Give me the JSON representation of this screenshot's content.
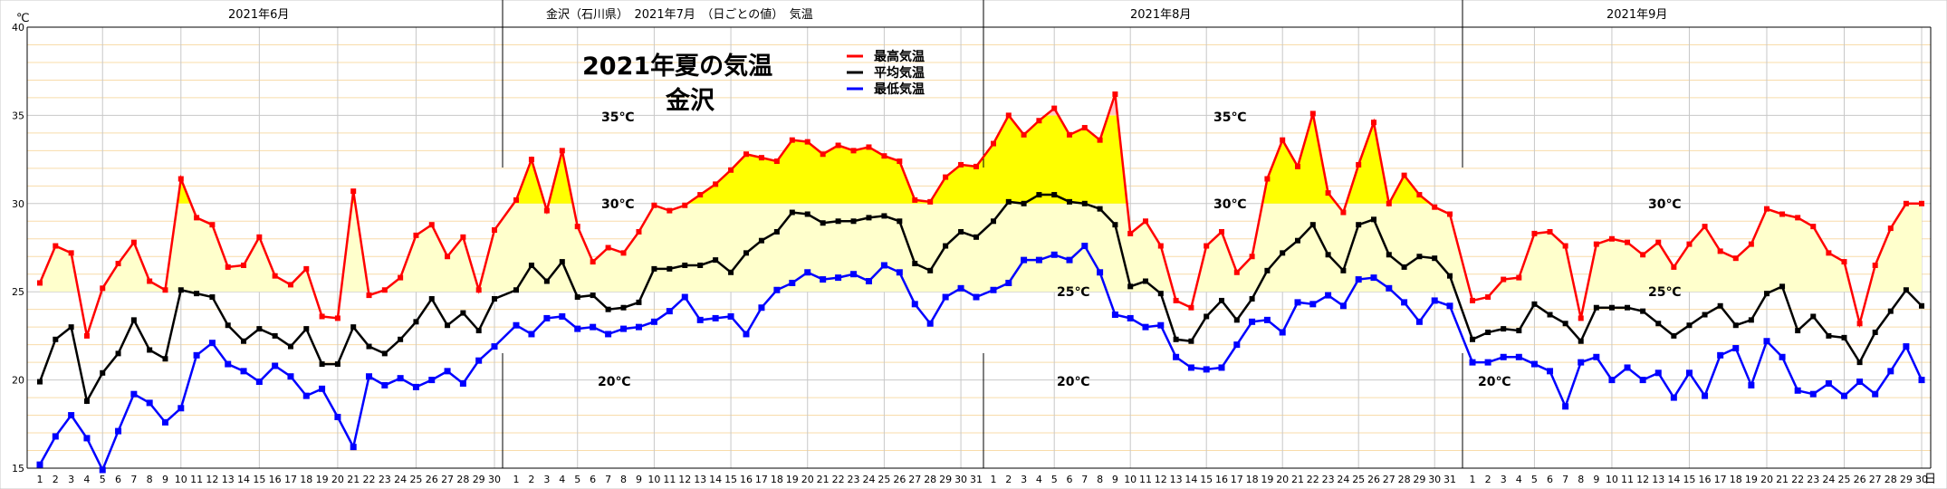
{
  "chart_data": {
    "type": "line",
    "title": "2021年夏の気温",
    "subtitle": "金沢",
    "header": "金沢（石川県）　2021年7月　（日ごとの値）　気温",
    "unit_label": "℃",
    "day_unit_label": "日",
    "ylim": [
      15,
      40
    ],
    "y_ticks": [
      "15",
      "20",
      "25",
      "30",
      "35",
      "40"
    ],
    "inline_labels": {
      "t35": "35℃",
      "t30": "30℃",
      "t25": "25℃",
      "t20": "20℃"
    },
    "months": [
      {
        "label": "2021年6月",
        "days": 30
      },
      {
        "label": "2021年7月",
        "days": 31
      },
      {
        "label": "2021年8月",
        "days": 31
      },
      {
        "label": "2021年9月",
        "days": 30
      }
    ],
    "series": [
      {
        "name": "最高気温",
        "color": "#ff0000",
        "values": [
          25.5,
          27.6,
          27.2,
          22.5,
          25.2,
          26.6,
          27.8,
          25.6,
          25.1,
          31.4,
          29.2,
          28.8,
          26.4,
          26.5,
          28.1,
          25.9,
          25.4,
          26.3,
          23.6,
          23.5,
          30.7,
          24.8,
          25.1,
          25.8,
          28.2,
          28.8,
          27.0,
          28.1,
          25.1,
          28.5,
          30.2,
          32.5,
          29.6,
          33.0,
          28.7,
          26.7,
          27.5,
          27.2,
          28.4,
          29.9,
          29.6,
          29.9,
          30.5,
          31.1,
          31.9,
          32.8,
          32.6,
          32.4,
          33.6,
          33.5,
          32.8,
          33.3,
          33.0,
          33.2,
          32.7,
          32.4,
          30.2,
          30.1,
          31.5,
          32.2,
          32.1,
          33.4,
          35.0,
          33.9,
          34.7,
          35.4,
          33.9,
          34.3,
          33.6,
          36.2,
          28.3,
          29.0,
          27.6,
          24.5,
          24.1,
          27.6,
          28.4,
          26.1,
          27.0,
          31.4,
          33.6,
          32.1,
          35.1,
          30.6,
          29.5,
          32.2,
          34.6,
          30.0,
          31.6,
          30.5,
          29.8,
          29.4,
          24.5,
          24.7,
          25.7,
          25.8,
          28.3,
          28.4,
          27.6,
          23.5,
          27.7,
          28.0,
          27.8,
          27.1,
          27.8,
          26.4,
          27.7,
          28.7,
          27.3,
          26.9,
          27.7,
          29.7,
          29.4,
          29.2,
          28.7,
          27.2,
          26.7,
          23.2,
          26.5,
          28.6,
          30.0,
          30.0
        ]
      },
      {
        "name": "平均気温",
        "color": "#000000",
        "values": [
          19.9,
          22.3,
          23.0,
          18.8,
          20.4,
          21.5,
          23.4,
          21.7,
          21.2,
          25.1,
          24.9,
          24.7,
          23.1,
          22.2,
          22.9,
          22.5,
          21.9,
          22.9,
          20.9,
          20.9,
          23.0,
          21.9,
          21.5,
          22.3,
          23.3,
          24.6,
          23.1,
          23.8,
          22.8,
          24.6,
          25.1,
          26.5,
          25.6,
          26.7,
          24.7,
          24.8,
          24.0,
          24.1,
          24.4,
          26.3,
          26.3,
          26.5,
          26.5,
          26.8,
          26.1,
          27.2,
          27.9,
          28.4,
          29.5,
          29.4,
          28.9,
          29.0,
          29.0,
          29.2,
          29.3,
          29.0,
          26.6,
          26.2,
          27.6,
          28.4,
          28.1,
          29.0,
          30.1,
          30.0,
          30.5,
          30.5,
          30.1,
          30.0,
          29.7,
          28.8,
          25.3,
          25.6,
          24.9,
          22.3,
          22.2,
          23.6,
          24.5,
          23.4,
          24.6,
          26.2,
          27.2,
          27.9,
          28.8,
          27.1,
          26.2,
          28.8,
          29.1,
          27.1,
          26.4,
          27.0,
          26.9,
          25.9,
          22.3,
          22.7,
          22.9,
          22.8,
          24.3,
          23.7,
          23.2,
          22.2,
          24.1,
          24.1,
          24.1,
          23.9,
          23.2,
          22.5,
          23.1,
          23.7,
          24.2,
          23.1,
          23.4,
          24.9,
          25.3,
          22.8,
          23.6,
          22.5,
          22.4,
          21.0,
          22.7,
          23.9,
          25.1,
          24.2
        ]
      },
      {
        "name": "最低気温",
        "color": "#0000ff",
        "values": [
          15.2,
          16.8,
          18.0,
          16.7,
          14.9,
          17.1,
          19.2,
          18.7,
          17.6,
          18.4,
          21.4,
          22.1,
          20.9,
          20.5,
          19.9,
          20.8,
          20.2,
          19.1,
          19.5,
          17.9,
          16.2,
          20.2,
          19.7,
          20.1,
          19.6,
          20.0,
          20.5,
          19.8,
          21.1,
          21.9,
          23.1,
          22.6,
          23.5,
          23.6,
          22.9,
          23.0,
          22.6,
          22.9,
          23.0,
          23.3,
          23.9,
          24.7,
          23.4,
          23.5,
          23.6,
          22.6,
          24.1,
          25.1,
          25.5,
          26.1,
          25.7,
          25.8,
          26.0,
          25.6,
          26.5,
          26.1,
          24.3,
          23.2,
          24.7,
          25.2,
          24.7,
          25.1,
          25.5,
          26.8,
          26.8,
          27.1,
          26.8,
          27.6,
          26.1,
          23.7,
          23.5,
          23.0,
          23.1,
          21.3,
          20.7,
          20.6,
          20.7,
          22.0,
          23.3,
          23.4,
          22.7,
          24.4,
          24.3,
          24.8,
          24.2,
          25.7,
          25.8,
          25.2,
          24.4,
          23.3,
          24.5,
          24.2,
          21.0,
          21.0,
          21.3,
          21.3,
          20.9,
          20.5,
          18.5,
          21.0,
          21.3,
          20.0,
          20.7,
          20.0,
          20.4,
          19.0,
          20.4,
          19.1,
          21.4,
          21.8,
          19.7,
          22.2,
          21.3,
          19.4,
          19.2,
          19.8,
          19.1,
          19.9,
          19.2,
          20.5,
          21.9,
          20.0
        ]
      }
    ],
    "fill_colors": {
      "band25_30": "#ffffcc",
      "band30_35": "#ffff00",
      "above35": "#ffc8c8"
    },
    "grid": true,
    "legend_position": "top-center"
  }
}
